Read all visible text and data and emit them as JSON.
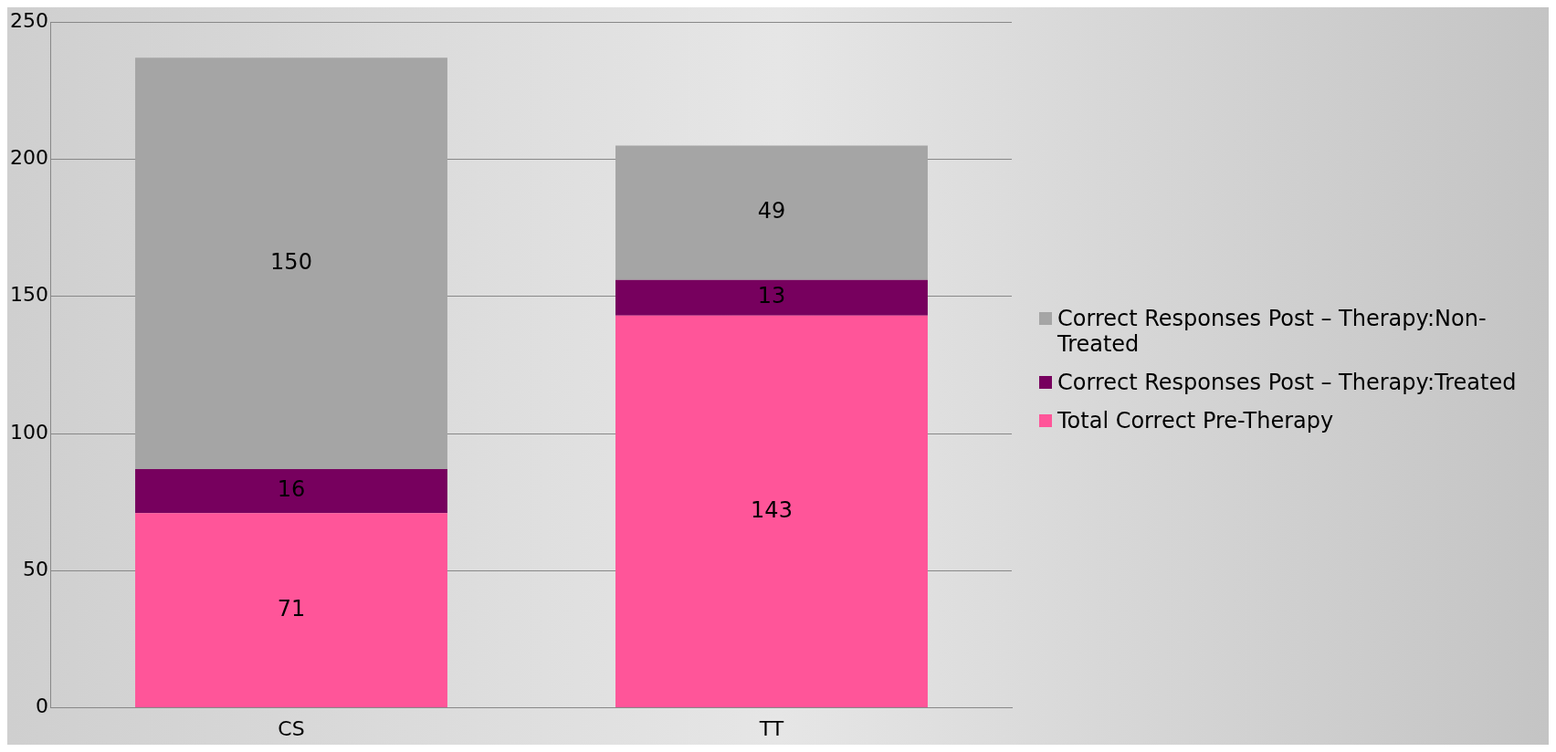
{
  "chart_data": {
    "type": "bar",
    "stacked": true,
    "categories": [
      "CS",
      "TT"
    ],
    "series": [
      {
        "name": "Total Correct Pre-Therapy",
        "color": "#ff5599",
        "values": [
          71,
          143
        ]
      },
      {
        "name": "Correct Responses Post – Therapy:Treated",
        "color": "#77005e",
        "values": [
          16,
          13
        ]
      },
      {
        "name": "Correct Responses Post – Therapy:Non-Treated",
        "color": "#a5a5a5",
        "values": [
          150,
          49
        ]
      }
    ],
    "ylim": [
      0,
      250
    ],
    "yticks": [
      0,
      50,
      100,
      150,
      200,
      250
    ],
    "grid": "y",
    "legend": "right",
    "data_labels": true
  }
}
